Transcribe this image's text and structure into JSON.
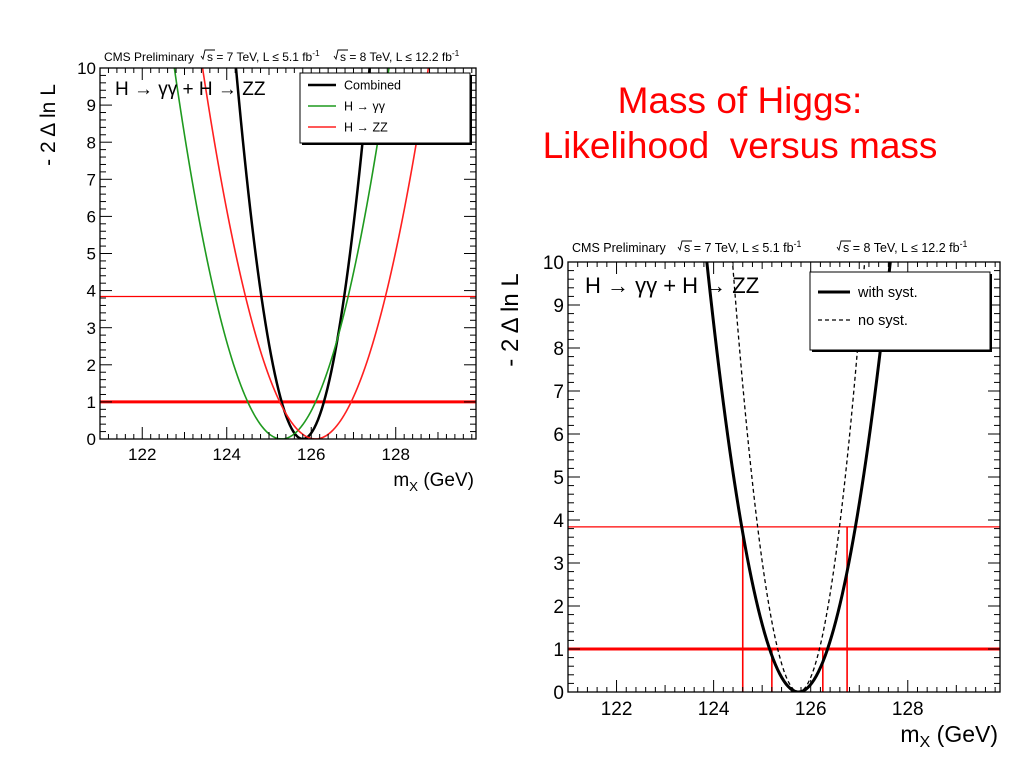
{
  "slide": {
    "title_line1": "Mass of Higgs:",
    "title_line2": "Likelihood  versus mass"
  },
  "chart_data": [
    {
      "type": "line",
      "header": "CMS Preliminary",
      "energy_7tev": "s = 7 TeV, L ≤ 5.1 fb",
      "energy_8tev": "s = 8 TeV, L ≤ 12.2 fb",
      "lumi_exponent": "-1",
      "channel": "H → γγ + H → ZZ",
      "xlabel": "m",
      "xlabel_sub": "X",
      "xlabel_unit": " (GeV)",
      "ylabel": "- 2 Δ ln L",
      "xlim": [
        121,
        129.9
      ],
      "ylim": [
        0,
        10
      ],
      "x_ticks": [
        122,
        124,
        126,
        128
      ],
      "y_ticks": [
        0,
        1,
        2,
        3,
        4,
        5,
        6,
        7,
        8,
        9,
        10
      ],
      "grid": false,
      "legend_position": "top-right",
      "hlines": [
        1,
        3.84
      ],
      "series": [
        {
          "name": "Combined",
          "color": "#000000",
          "min_x": 125.8,
          "curvature": 4.0,
          "width": 2.5,
          "dash": ""
        },
        {
          "name": "H → γγ",
          "color": "#1f9a1f",
          "min_x": 125.3,
          "curvature": 1.55,
          "width": 1.6,
          "dash": ""
        },
        {
          "name": "H → ZZ",
          "color": "#ff2020",
          "min_x": 126.1,
          "curvature": 1.4,
          "width": 1.6,
          "dash": ""
        }
      ]
    },
    {
      "type": "line",
      "header": "CMS Preliminary",
      "energy_7tev": "s = 7 TeV, L ≤ 5.1 fb",
      "energy_8tev": "s = 8 TeV, L ≤ 12.2 fb",
      "lumi_exponent": "-1",
      "channel": "H → γγ + H → ZZ",
      "xlabel": "m",
      "xlabel_sub": "X",
      "xlabel_unit": " (GeV)",
      "ylabel": "- 2 Δ ln L",
      "xlim": [
        121,
        129.9
      ],
      "ylim": [
        0,
        10
      ],
      "x_ticks": [
        122,
        124,
        126,
        128
      ],
      "y_ticks": [
        0,
        1,
        2,
        3,
        4,
        5,
        6,
        7,
        8,
        9,
        10
      ],
      "grid": false,
      "legend_position": "top-right",
      "hlines": [
        1,
        3.84
      ],
      "vlines": [
        124.6,
        125.2,
        126.25,
        126.75
      ],
      "series": [
        {
          "name": "with syst.",
          "color": "#000000",
          "min_x": 125.75,
          "curvature": 2.8,
          "width": 3,
          "dash": ""
        },
        {
          "name": "no syst.",
          "color": "#000000",
          "min_x": 125.75,
          "curvature": 5.4,
          "width": 1.3,
          "dash": "4,3"
        }
      ]
    }
  ]
}
